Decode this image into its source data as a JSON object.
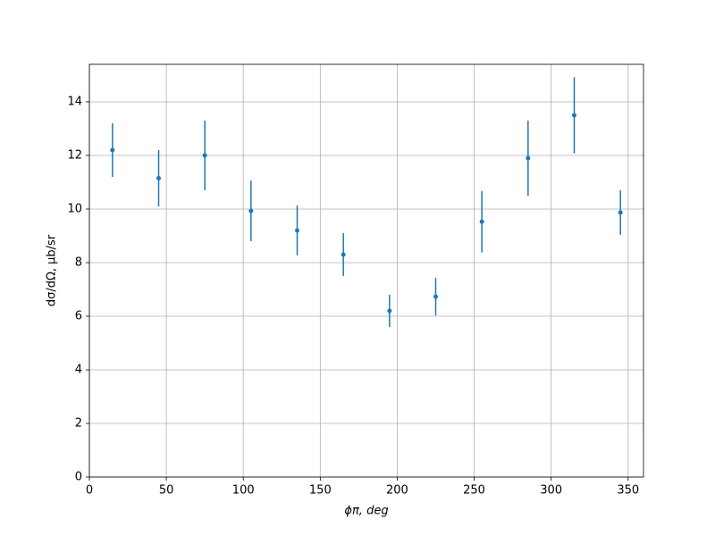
{
  "chart_data": {
    "type": "errorbar",
    "x": [
      15,
      45,
      75,
      105,
      135,
      165,
      195,
      225,
      255,
      285,
      315,
      345
    ],
    "values": [
      12.2,
      11.15,
      12.0,
      9.93,
      9.2,
      8.3,
      6.2,
      6.73,
      9.53,
      11.9,
      13.5,
      9.87
    ],
    "errors": [
      1.0,
      1.05,
      1.3,
      1.13,
      0.93,
      0.8,
      0.6,
      0.7,
      1.15,
      1.4,
      1.42,
      0.83
    ],
    "color": "#1f77b4",
    "xlabel": "ϕπ, deg",
    "ylabel": "dσ/dΩ, μb/sr",
    "xlim": [
      0,
      360
    ],
    "ylim": [
      0,
      15.4
    ],
    "xticks": [
      0,
      50,
      100,
      150,
      200,
      250,
      300,
      350
    ],
    "yticks": [
      0,
      2,
      4,
      6,
      8,
      10,
      12,
      14
    ],
    "grid": true
  }
}
